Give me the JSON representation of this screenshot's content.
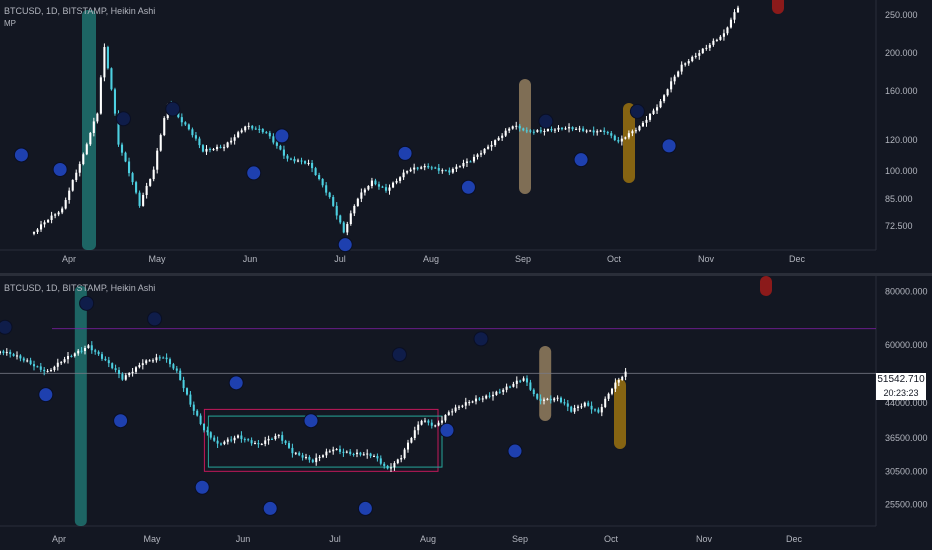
{
  "top": {
    "header": "BTCUSD, 1D, BITSTAMP, Heikin Ashi",
    "indicator": "MP",
    "y_ticks": [
      "250.000",
      "200.000",
      "160.000",
      "120.000",
      "100.000",
      "85.000",
      "72.500"
    ],
    "x_ticks": [
      "Apr",
      "May",
      "Jun",
      "Jul",
      "Aug",
      "Sep",
      "Oct",
      "Nov",
      "Dec"
    ]
  },
  "bottom": {
    "header": "BTCUSD, 1D, BITSTAMP, Heikin Ashi",
    "y_ticks": [
      "80000.000",
      "60000.000",
      "44000.000",
      "36500.000",
      "30500.000",
      "25500.000"
    ],
    "x_ticks": [
      "Apr",
      "May",
      "Jun",
      "Jul",
      "Aug",
      "Sep",
      "Oct",
      "Nov",
      "Dec"
    ],
    "last_price": "51542.710",
    "countdown": "20:23:23"
  },
  "colors": {
    "background": "#131722",
    "bull": "#ffffff",
    "bear": "#4dd0e1",
    "dot_fill": "#1e40af",
    "dot_dark": "#0f1d4a",
    "teal_band": "#26a69a",
    "tan_band": "#c8a878",
    "orange_band": "#b8860b",
    "red_marker": "#8b1a1a",
    "rect_magenta": "#c2185b",
    "rect_teal": "#26a69a"
  },
  "chart_data": [
    {
      "type": "candlestick",
      "title": "BTCUSD, 1D, BITSTAMP, Heikin Ashi",
      "subtitle": "MP",
      "x_ticks": [
        "Apr",
        "May",
        "Jun",
        "Jul",
        "Aug",
        "Sep",
        "Oct",
        "Nov",
        "Dec"
      ],
      "y_ticks": [
        250,
        200,
        160,
        120,
        100,
        85,
        72.5
      ],
      "ylim": [
        63,
        265
      ],
      "log_scale": true,
      "anchors": [
        [
          0,
          70
        ],
        [
          8,
          80
        ],
        [
          14,
          110
        ],
        [
          18,
          140
        ],
        [
          20,
          205
        ],
        [
          24,
          118
        ],
        [
          30,
          82
        ],
        [
          34,
          100
        ],
        [
          38,
          148
        ],
        [
          44,
          128
        ],
        [
          48,
          112
        ],
        [
          54,
          116
        ],
        [
          60,
          130
        ],
        [
          66,
          125
        ],
        [
          72,
          108
        ],
        [
          78,
          104
        ],
        [
          84,
          86
        ],
        [
          88,
          70
        ],
        [
          92,
          85
        ],
        [
          96,
          94
        ],
        [
          100,
          90
        ],
        [
          106,
          100
        ],
        [
          112,
          103
        ],
        [
          118,
          100
        ],
        [
          124,
          106
        ],
        [
          130,
          118
        ],
        [
          136,
          130
        ],
        [
          140,
          126
        ],
        [
          146,
          128
        ],
        [
          152,
          128
        ],
        [
          158,
          127
        ],
        [
          162,
          127
        ],
        [
          166,
          118
        ],
        [
          172,
          130
        ],
        [
          178,
          150
        ],
        [
          184,
          185
        ],
        [
          190,
          205
        ],
        [
          196,
          222
        ],
        [
          200,
          262
        ]
      ],
      "teal_bands": [
        [
          -56,
          -18
        ]
      ],
      "tan_bands": [
        [
          125,
          178
        ]
      ],
      "orange_bands": [
        [
          134,
          152
        ]
      ],
      "red_markers": [
        [
          147,
          263
        ]
      ],
      "dots": [
        [
          -36,
          130
        ],
        [
          -20,
          78
        ],
        [
          -22,
          71
        ],
        [
          -5,
          110
        ],
        [
          6,
          101
        ],
        [
          24,
          136
        ],
        [
          38,
          144
        ],
        [
          61,
          99
        ],
        [
          69,
          123
        ],
        [
          87,
          65
        ],
        [
          104,
          111
        ],
        [
          122,
          91
        ],
        [
          144,
          134
        ],
        [
          154,
          107
        ],
        [
          170,
          142
        ],
        [
          179,
          116
        ]
      ]
    },
    {
      "type": "candlestick",
      "title": "BTCUSD, 1D, BITSTAMP, Heikin Ashi",
      "x_ticks": [
        "Apr",
        "May",
        "Jun",
        "Jul",
        "Aug",
        "Sep",
        "Oct",
        "Nov",
        "Dec"
      ],
      "y_ticks": [
        80000,
        60000,
        44000,
        36500,
        30500,
        25500
      ],
      "ylim": [
        23000,
        85000
      ],
      "log_scale": true,
      "last_price": 51542.71,
      "anchors": [
        [
          0,
          58000
        ],
        [
          8,
          55000
        ],
        [
          14,
          52000
        ],
        [
          20,
          56000
        ],
        [
          26,
          60000
        ],
        [
          30,
          56000
        ],
        [
          36,
          50000
        ],
        [
          42,
          55000
        ],
        [
          48,
          56000
        ],
        [
          52,
          52000
        ],
        [
          56,
          44000
        ],
        [
          60,
          38000
        ],
        [
          64,
          35000
        ],
        [
          70,
          37000
        ],
        [
          76,
          35000
        ],
        [
          82,
          37000
        ],
        [
          86,
          34000
        ],
        [
          92,
          32000
        ],
        [
          98,
          34500
        ],
        [
          104,
          33500
        ],
        [
          110,
          33000
        ],
        [
          114,
          31000
        ],
        [
          118,
          33000
        ],
        [
          124,
          40000
        ],
        [
          128,
          39000
        ],
        [
          132,
          42000
        ],
        [
          138,
          44000
        ],
        [
          144,
          46000
        ],
        [
          150,
          48000
        ],
        [
          154,
          50000
        ],
        [
          158,
          45000
        ],
        [
          164,
          45000
        ],
        [
          168,
          42000
        ],
        [
          172,
          44000
        ],
        [
          176,
          42000
        ],
        [
          180,
          47500
        ],
        [
          184,
          51542.71
        ]
      ],
      "reference_lines": [
        {
          "value": 65500,
          "color": "#7b1fa2"
        },
        {
          "value": 51542.71,
          "color": "#787b86"
        }
      ],
      "ranges": [
        {
          "x": [
            56,
            120
          ],
          "y": [
            30500,
            42500
          ],
          "color": "#c2185b"
        },
        {
          "x": [
            56,
            120
          ],
          "y": [
            31200,
            41000
          ],
          "color": "#26a69a"
        }
      ],
      "teal_bands": [
        [
          22,
          26
        ]
      ],
      "tan_bands": [
        [
          158,
          162
        ]
      ],
      "orange_bands": [
        [
          180,
          184
        ]
      ],
      "red_markers": [
        [
          197,
          81500
        ]
      ],
      "dots": [
        [
          0,
          66000
        ],
        [
          12,
          46000
        ],
        [
          24,
          75000
        ],
        [
          34,
          40000
        ],
        [
          44,
          69000
        ],
        [
          58,
          28000
        ],
        [
          68,
          49000
        ],
        [
          78,
          25000
        ],
        [
          90,
          40000
        ],
        [
          106,
          25000
        ],
        [
          116,
          57000
        ],
        [
          130,
          38000
        ],
        [
          140,
          62000
        ],
        [
          150,
          34000
        ]
      ]
    }
  ]
}
